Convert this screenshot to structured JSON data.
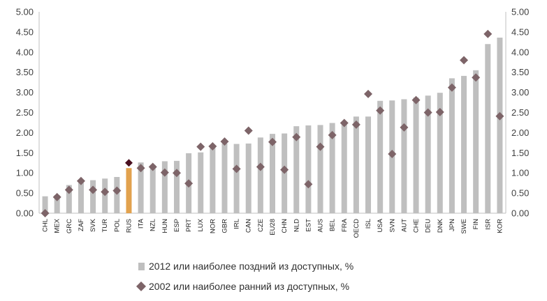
{
  "chart_data": {
    "type": "bar",
    "categories": [
      "CHL",
      "MEX",
      "GRC",
      "ZAF",
      "SVK",
      "TUR",
      "POL",
      "RUS",
      "ITA",
      "NZL",
      "HUN",
      "ESP",
      "PRT",
      "LUX",
      "NOR",
      "GBR",
      "IRL",
      "CAN",
      "CZE",
      "EU28",
      "CHN",
      "NLD",
      "EST",
      "AUS",
      "BEL",
      "FRA",
      "OECD",
      "ISL",
      "USA",
      "SVN",
      "AUT",
      "CHE",
      "DEU",
      "DNK",
      "JPN",
      "SWE",
      "FIN",
      "ISR",
      "KOR"
    ],
    "series": [
      {
        "name": "2012 или наиболее поздний из доступных, %",
        "kind": "bar",
        "values": [
          0.42,
          0.45,
          0.7,
          0.76,
          0.82,
          0.86,
          0.9,
          1.12,
          1.26,
          1.2,
          1.29,
          1.3,
          1.49,
          1.51,
          1.66,
          1.73,
          1.72,
          1.73,
          1.88,
          1.97,
          1.98,
          2.16,
          2.18,
          2.19,
          2.24,
          2.27,
          2.4,
          2.4,
          2.79,
          2.8,
          2.83,
          2.87,
          2.92,
          2.99,
          3.35,
          3.41,
          3.55,
          4.2,
          4.36
        ],
        "color": "#bfbfbf",
        "highlight_color": "#e2a24e",
        "highlight_category": "RUS"
      },
      {
        "name": "2002 или наиболее ранний из доступных, %",
        "kind": "scatter",
        "values": [
          0.0,
          0.4,
          0.58,
          0.8,
          0.58,
          0.53,
          0.56,
          1.25,
          1.12,
          1.15,
          1.01,
          1.0,
          0.74,
          1.65,
          1.66,
          1.78,
          1.1,
          2.05,
          1.15,
          1.77,
          1.08,
          1.89,
          0.72,
          1.65,
          1.94,
          2.24,
          2.2,
          2.96,
          2.55,
          1.47,
          2.13,
          2.81,
          2.5,
          2.51,
          3.12,
          3.8,
          3.37,
          4.45,
          2.41
        ],
        "color": "#7d6468",
        "highlight_color": "#4a1020"
      }
    ],
    "yticks": [
      "0.00",
      "0.50",
      "1.00",
      "1.50",
      "2.00",
      "2.50",
      "3.00",
      "3.50",
      "4.00",
      "4.50",
      "5.00"
    ],
    "ylim": [
      0,
      5
    ],
    "grid": false,
    "legend_position": "bottom-center"
  }
}
